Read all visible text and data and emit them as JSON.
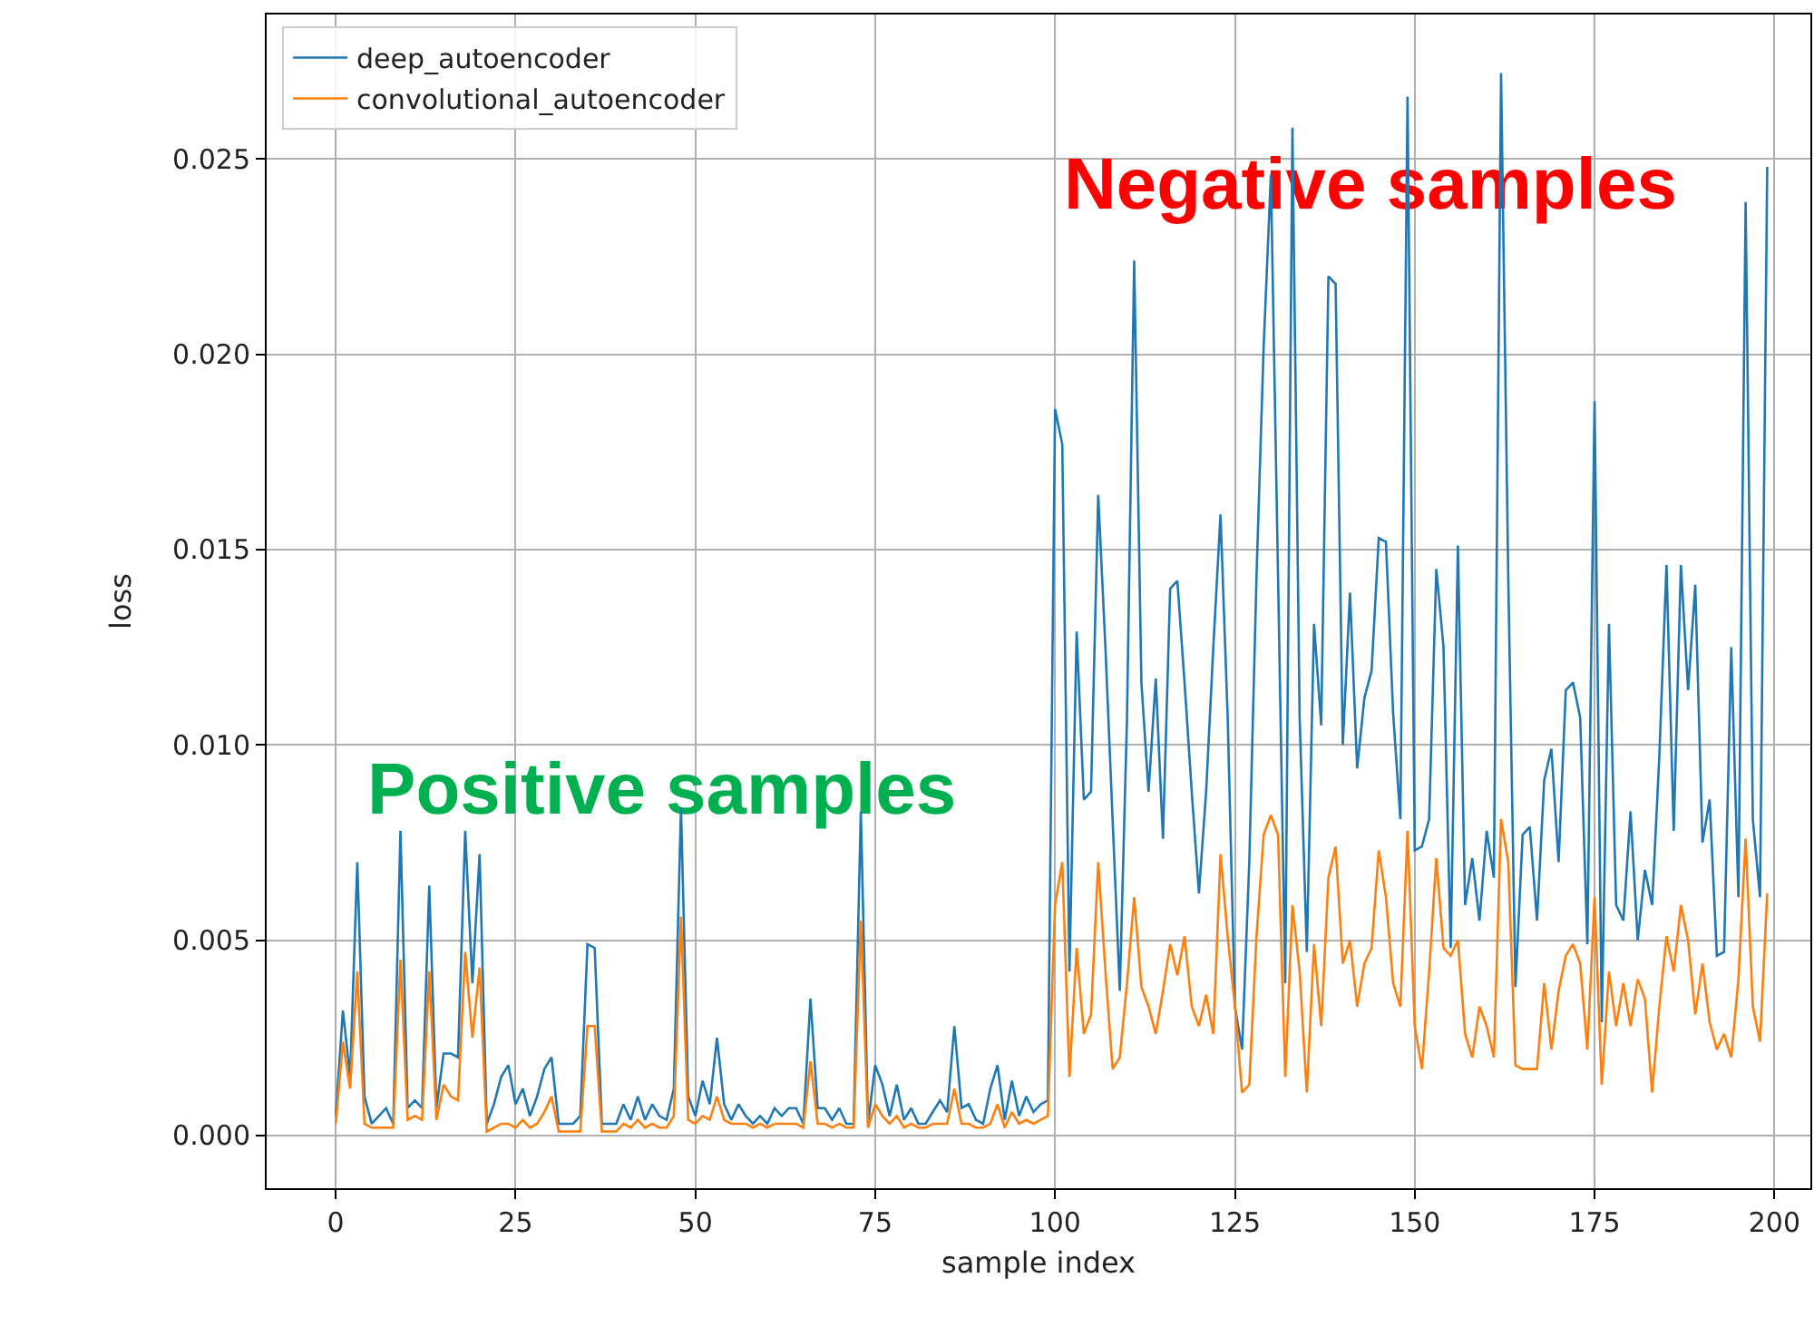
{
  "chart_data": {
    "type": "line",
    "xlabel": "sample index",
    "ylabel": "loss",
    "x": [
      0,
      1,
      2,
      3,
      4,
      5,
      6,
      7,
      8,
      9,
      10,
      11,
      12,
      13,
      14,
      15,
      16,
      17,
      18,
      19,
      20,
      21,
      22,
      23,
      24,
      25,
      26,
      27,
      28,
      29,
      30,
      31,
      32,
      33,
      34,
      35,
      36,
      37,
      38,
      39,
      40,
      41,
      42,
      43,
      44,
      45,
      46,
      47,
      48,
      49,
      50,
      51,
      52,
      53,
      54,
      55,
      56,
      57,
      58,
      59,
      60,
      61,
      62,
      63,
      64,
      65,
      66,
      67,
      68,
      69,
      70,
      71,
      72,
      73,
      74,
      75,
      76,
      77,
      78,
      79,
      80,
      81,
      82,
      83,
      84,
      85,
      86,
      87,
      88,
      89,
      90,
      91,
      92,
      93,
      94,
      95,
      96,
      97,
      98,
      99,
      100,
      101,
      102,
      103,
      104,
      105,
      106,
      107,
      108,
      109,
      110,
      111,
      112,
      113,
      114,
      115,
      116,
      117,
      118,
      119,
      120,
      121,
      122,
      123,
      124,
      125,
      126,
      127,
      128,
      129,
      130,
      131,
      132,
      133,
      134,
      135,
      136,
      137,
      138,
      139,
      140,
      141,
      142,
      143,
      144,
      145,
      146,
      147,
      148,
      149,
      150,
      151,
      152,
      153,
      154,
      155,
      156,
      157,
      158,
      159,
      160,
      161,
      162,
      163,
      164,
      165,
      166,
      167,
      168,
      169,
      170,
      171,
      172,
      173,
      174,
      175,
      176,
      177,
      178,
      179,
      180,
      181,
      182,
      183,
      184,
      185,
      186,
      187,
      188,
      189,
      190,
      191,
      192,
      193,
      194,
      195,
      196,
      197,
      198,
      199
    ],
    "series": [
      {
        "name": "deep_autoencoder",
        "color": "#1f77b4",
        "values": [
          0.0005,
          0.0032,
          0.0015,
          0.007,
          0.001,
          0.0003,
          0.0005,
          0.0007,
          0.0003,
          0.0078,
          0.0007,
          0.0009,
          0.0007,
          0.0064,
          0.0007,
          0.0021,
          0.0021,
          0.002,
          0.0078,
          0.0039,
          0.0072,
          0.0003,
          0.0008,
          0.0015,
          0.0018,
          0.0008,
          0.0012,
          0.0005,
          0.001,
          0.0017,
          0.002,
          0.0003,
          0.0003,
          0.0003,
          0.0005,
          0.0049,
          0.0048,
          0.0003,
          0.0003,
          0.0003,
          0.0008,
          0.0004,
          0.001,
          0.0004,
          0.0008,
          0.0005,
          0.0004,
          0.0012,
          0.0084,
          0.001,
          0.0005,
          0.0014,
          0.0008,
          0.0025,
          0.0008,
          0.0004,
          0.0008,
          0.0005,
          0.0003,
          0.0005,
          0.0003,
          0.0007,
          0.0005,
          0.0007,
          0.0007,
          0.0003,
          0.0035,
          0.0007,
          0.0007,
          0.0004,
          0.0007,
          0.0003,
          0.0003,
          0.0083,
          0.0003,
          0.0018,
          0.0013,
          0.0005,
          0.0013,
          0.0004,
          0.0007,
          0.0003,
          0.0003,
          0.0006,
          0.0009,
          0.0006,
          0.0028,
          0.0007,
          0.0008,
          0.0004,
          0.0003,
          0.0012,
          0.0018,
          0.0004,
          0.0014,
          0.0005,
          0.001,
          0.0006,
          0.0008,
          0.0009,
          0.0186,
          0.0177,
          0.0042,
          0.0129,
          0.0086,
          0.0088,
          0.0164,
          0.0125,
          0.0081,
          0.0037,
          0.0107,
          0.0224,
          0.0116,
          0.0088,
          0.0117,
          0.0076,
          0.014,
          0.0142,
          0.0116,
          0.0088,
          0.0062,
          0.0088,
          0.0125,
          0.0159,
          0.0107,
          0.0033,
          0.0022,
          0.007,
          0.0143,
          0.0202,
          0.0246,
          0.0143,
          0.0039,
          0.0258,
          0.0107,
          0.0047,
          0.0131,
          0.0105,
          0.022,
          0.0218,
          0.01,
          0.0139,
          0.0094,
          0.0112,
          0.0119,
          0.0153,
          0.0152,
          0.0108,
          0.0081,
          0.0266,
          0.0073,
          0.0074,
          0.0081,
          0.0145,
          0.0125,
          0.0048,
          0.0151,
          0.0059,
          0.0071,
          0.0055,
          0.0078,
          0.0066,
          0.0272,
          0.0143,
          0.0038,
          0.0077,
          0.0079,
          0.0055,
          0.0091,
          0.0099,
          0.007,
          0.0114,
          0.0116,
          0.0107,
          0.0049,
          0.0188,
          0.0029,
          0.0131,
          0.0059,
          0.0055,
          0.0083,
          0.005,
          0.0068,
          0.0059,
          0.0097,
          0.0146,
          0.0078,
          0.0146,
          0.0114,
          0.0141,
          0.0075,
          0.0086,
          0.0046,
          0.0047,
          0.0125,
          0.0061,
          0.0239,
          0.0081,
          0.0061,
          0.0248
        ]
      },
      {
        "name": "convolutional_autoencoder",
        "color": "#ff7f0e",
        "values": [
          0.0003,
          0.0024,
          0.0012,
          0.0042,
          0.0003,
          0.0002,
          0.0002,
          0.0002,
          0.0002,
          0.0045,
          0.0004,
          0.0005,
          0.0004,
          0.0042,
          0.0004,
          0.0013,
          0.001,
          0.0009,
          0.0047,
          0.0025,
          0.0043,
          0.0001,
          0.0002,
          0.0003,
          0.0003,
          0.0002,
          0.0004,
          0.0002,
          0.0003,
          0.0006,
          0.001,
          0.0001,
          0.0001,
          0.0001,
          0.0001,
          0.0028,
          0.0028,
          0.0001,
          0.0001,
          0.0001,
          0.0003,
          0.0002,
          0.0004,
          0.0002,
          0.0003,
          0.0002,
          0.0002,
          0.0005,
          0.0056,
          0.0004,
          0.0003,
          0.0005,
          0.0004,
          0.001,
          0.0004,
          0.0003,
          0.0003,
          0.0003,
          0.0002,
          0.0003,
          0.0002,
          0.0003,
          0.0003,
          0.0003,
          0.0003,
          0.0002,
          0.0019,
          0.0003,
          0.0003,
          0.0002,
          0.0003,
          0.0002,
          0.0002,
          0.0055,
          0.0002,
          0.0008,
          0.0005,
          0.0003,
          0.0005,
          0.0002,
          0.0003,
          0.0002,
          0.0002,
          0.0003,
          0.0003,
          0.0003,
          0.0012,
          0.0003,
          0.0003,
          0.0002,
          0.0002,
          0.0003,
          0.0008,
          0.0002,
          0.0006,
          0.0003,
          0.0004,
          0.0003,
          0.0004,
          0.0005,
          0.0059,
          0.007,
          0.0015,
          0.0048,
          0.0026,
          0.0031,
          0.007,
          0.0042,
          0.0017,
          0.002,
          0.0039,
          0.0061,
          0.0038,
          0.0033,
          0.0026,
          0.0037,
          0.0049,
          0.0041,
          0.0051,
          0.0033,
          0.0028,
          0.0036,
          0.0026,
          0.0072,
          0.0051,
          0.0033,
          0.0011,
          0.0013,
          0.0051,
          0.0077,
          0.0082,
          0.0077,
          0.0015,
          0.0059,
          0.0042,
          0.0011,
          0.0049,
          0.0028,
          0.0066,
          0.0074,
          0.0044,
          0.005,
          0.0033,
          0.0044,
          0.0048,
          0.0073,
          0.0061,
          0.0039,
          0.0033,
          0.0078,
          0.0028,
          0.0017,
          0.0042,
          0.0071,
          0.0048,
          0.0046,
          0.005,
          0.0026,
          0.002,
          0.0033,
          0.0028,
          0.002,
          0.0081,
          0.007,
          0.0018,
          0.0017,
          0.0017,
          0.0017,
          0.0039,
          0.0022,
          0.0037,
          0.0046,
          0.0049,
          0.0044,
          0.0022,
          0.0061,
          0.0013,
          0.0042,
          0.0028,
          0.0039,
          0.0028,
          0.004,
          0.0035,
          0.0011,
          0.0033,
          0.0051,
          0.0042,
          0.0059,
          0.005,
          0.0031,
          0.0044,
          0.0029,
          0.0022,
          0.0026,
          0.002,
          0.004,
          0.0076,
          0.0033,
          0.0024,
          0.0062
        ]
      }
    ],
    "xlim": [
      -9.6,
      205
    ],
    "xticks": [
      0,
      25,
      50,
      75,
      100,
      125,
      150,
      175,
      200
    ],
    "ylim": [
      -0.00135,
      0.0287
    ],
    "yticks": [
      {
        "value": 0,
        "label": "0.000"
      },
      {
        "value": 0.005,
        "label": "0.005"
      },
      {
        "value": 0.01,
        "label": "0.010"
      },
      {
        "value": 0.015,
        "label": "0.015"
      },
      {
        "value": 0.02,
        "label": "0.020"
      },
      {
        "value": 0.025,
        "label": "0.025"
      }
    ],
    "grid": true,
    "legend": "top left",
    "line_style": "solid",
    "marker": "none",
    "annotations": [
      "Positive samples",
      "Negative samples"
    ]
  }
}
